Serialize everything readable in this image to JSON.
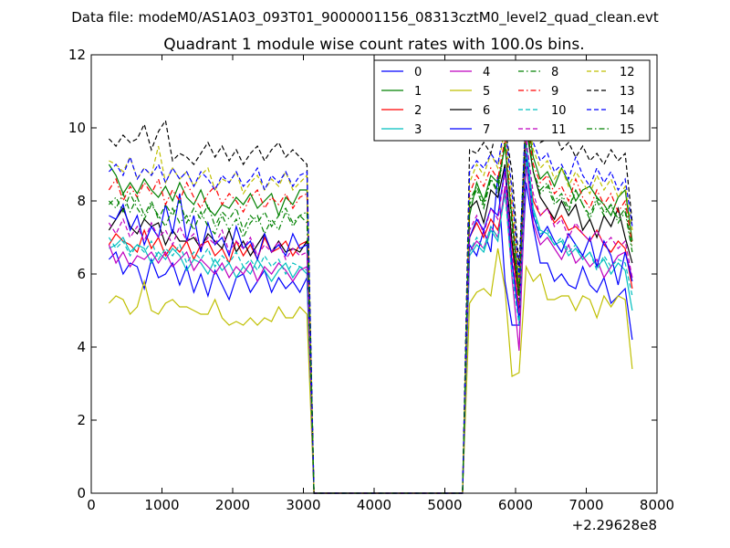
{
  "figure": {
    "suptitle": "Data file: modeM0/AS1A03_093T01_9000001156_08313cztM0_level2_quad_clean.evt",
    "offset_label": "+2.29628e8"
  },
  "chart_data": {
    "type": "line",
    "title": "Quadrant 1 module wise count rates with 100.0s bins.",
    "xlabel": "",
    "ylabel": "",
    "xlim": [
      0,
      8000
    ],
    "ylim": [
      0,
      12
    ],
    "x_offset": 229628000,
    "x_ticks": [
      0,
      1000,
      2000,
      3000,
      4000,
      5000,
      6000,
      7000,
      8000
    ],
    "y_ticks": [
      0,
      2,
      4,
      6,
      8,
      10,
      12
    ],
    "legend_position": "top-right",
    "legend_columns": 4,
    "x": [
      250,
      350,
      450,
      550,
      650,
      750,
      850,
      950,
      1050,
      1150,
      1250,
      1350,
      1450,
      1550,
      1650,
      1750,
      1850,
      1950,
      2050,
      2150,
      2250,
      2350,
      2450,
      2550,
      2650,
      2750,
      2850,
      2950,
      3050,
      3150,
      3250,
      3350,
      3450,
      3550,
      3650,
      3750,
      3850,
      3950,
      4050,
      4150,
      4250,
      4350,
      4450,
      4550,
      4650,
      4750,
      4850,
      4950,
      5050,
      5150,
      5250,
      5350,
      5450,
      5550,
      5650,
      5750,
      5850,
      5950,
      6050,
      6150,
      6250,
      6350,
      6450,
      6550,
      6650,
      6750,
      6850,
      6950,
      7050,
      7150,
      7250,
      7350,
      7450,
      7550,
      7650
    ],
    "series": [
      {
        "name": "0",
        "color": "#0000ff",
        "dash": "solid",
        "pre": [
          6.4,
          6.6,
          6.0,
          6.3,
          6.2,
          5.6,
          6.4,
          5.9,
          6.0,
          6.3,
          5.7,
          6.2,
          5.5,
          6.0,
          5.4,
          6.1,
          5.7,
          5.3,
          5.9,
          6.0,
          5.5,
          5.8,
          6.1,
          5.5,
          5.9,
          5.6,
          5.8,
          5.5,
          5.9
        ],
        "post": [
          6.8,
          6.5,
          7.2,
          6.6,
          8.7,
          5.8,
          4.6,
          4.6,
          8.5,
          7.3,
          6.3,
          6.3,
          5.8,
          6.0,
          5.7,
          5.6,
          6.2,
          5.7,
          5.5,
          5.9,
          5.2,
          5.4,
          5.6,
          4.2
        ]
      },
      {
        "name": "1",
        "color": "#008000",
        "dash": "solid",
        "pre": [
          9.0,
          8.7,
          8.2,
          8.5,
          8.2,
          8.6,
          8.3,
          8.1,
          8.4,
          8.0,
          8.5,
          8.1,
          7.9,
          8.3,
          7.8,
          7.6,
          7.9,
          7.8,
          8.1,
          7.9,
          8.2,
          7.8,
          8.0,
          8.2,
          7.6,
          8.1,
          7.9,
          8.3,
          8.3
        ],
        "post": [
          7.6,
          8.5,
          8.0,
          8.7,
          8.5,
          9.5,
          7.5,
          5.6,
          10.4,
          9.2,
          8.6,
          8.8,
          8.4,
          8.9,
          8.5,
          8.0,
          8.3,
          8.4,
          8.1,
          7.9,
          7.6,
          8.1,
          8.3,
          6.9
        ]
      },
      {
        "name": "2",
        "color": "#ff0000",
        "dash": "solid",
        "pre": [
          6.8,
          7.1,
          6.9,
          6.8,
          6.6,
          7.2,
          6.7,
          7.0,
          6.5,
          6.8,
          6.6,
          6.9,
          6.4,
          6.8,
          6.9,
          6.5,
          6.7,
          6.3,
          6.9,
          6.5,
          6.8,
          6.4,
          7.0,
          6.6,
          6.7,
          6.9,
          6.5,
          6.8,
          6.9
        ],
        "post": [
          7.0,
          7.4,
          7.0,
          7.5,
          7.2,
          8.2,
          6.8,
          5.0,
          9.2,
          8.0,
          7.6,
          7.8,
          7.4,
          7.6,
          7.2,
          7.3,
          7.1,
          6.9,
          7.2,
          6.8,
          6.6,
          6.9,
          6.7,
          5.6
        ]
      },
      {
        "name": "3",
        "color": "#00bfbf",
        "dash": "solid",
        "pre": [
          6.7,
          6.8,
          7.0,
          6.6,
          6.8,
          6.7,
          6.3,
          6.6,
          6.4,
          6.7,
          6.5,
          6.1,
          6.4,
          6.3,
          6.0,
          6.4,
          6.1,
          6.3,
          5.9,
          6.2,
          6.0,
          6.4,
          6.1,
          5.8,
          6.1,
          6.3,
          5.9,
          6.2,
          6.0
        ],
        "post": [
          6.5,
          6.8,
          6.6,
          7.2,
          6.9,
          8.3,
          6.3,
          4.7,
          9.6,
          7.8,
          7.2,
          7.1,
          6.8,
          6.9,
          6.5,
          6.7,
          6.4,
          6.6,
          6.2,
          6.4,
          6.0,
          6.3,
          6.1,
          5.0
        ]
      },
      {
        "name": "4",
        "color": "#bf00bf",
        "dash": "solid",
        "pre": [
          6.8,
          6.3,
          6.6,
          6.2,
          6.5,
          6.4,
          6.6,
          6.3,
          6.6,
          6.2,
          6.4,
          6.6,
          6.1,
          6.4,
          6.2,
          6.0,
          6.3,
          5.9,
          6.2,
          6.0,
          6.3,
          5.8,
          6.2,
          6.0,
          6.3,
          6.1,
          5.8,
          6.1,
          6.2
        ],
        "post": [
          6.6,
          6.9,
          6.7,
          7.3,
          7.0,
          8.4,
          5.9,
          3.9,
          9.0,
          7.4,
          6.8,
          7.0,
          6.7,
          6.4,
          6.8,
          6.3,
          6.5,
          6.2,
          6.4,
          5.9,
          6.2,
          6.5,
          6.6,
          5.9
        ]
      },
      {
        "name": "5",
        "color": "#bfbf00",
        "dash": "solid",
        "pre": [
          5.2,
          5.4,
          5.3,
          4.9,
          5.1,
          5.8,
          5.0,
          4.9,
          5.2,
          5.3,
          5.1,
          5.1,
          5.0,
          4.9,
          4.9,
          5.3,
          4.8,
          4.6,
          4.7,
          4.6,
          4.8,
          4.6,
          4.8,
          4.7,
          5.1,
          4.8,
          4.8,
          5.1,
          4.9
        ],
        "post": [
          5.2,
          5.5,
          5.6,
          5.4,
          6.7,
          5.6,
          3.2,
          3.3,
          6.2,
          5.8,
          6.0,
          5.3,
          5.3,
          5.4,
          5.4,
          5.0,
          5.4,
          5.3,
          4.8,
          5.4,
          5.1,
          5.4,
          5.3,
          3.4
        ]
      },
      {
        "name": "6",
        "color": "#000000",
        "dash": "solid",
        "pre": [
          7.2,
          7.5,
          7.8,
          7.3,
          7.1,
          7.5,
          7.3,
          7.4,
          6.8,
          7.2,
          6.9,
          6.9,
          7.0,
          6.7,
          7.1,
          6.9,
          6.7,
          7.2,
          6.6,
          6.9,
          6.5,
          6.8,
          7.1,
          6.6,
          6.9,
          6.6,
          6.7,
          6.6,
          6.9
        ],
        "post": [
          7.8,
          8.0,
          7.4,
          8.3,
          8.1,
          9.0,
          6.9,
          5.4,
          10.0,
          8.8,
          8.1,
          7.8,
          7.5,
          8.0,
          7.6,
          7.9,
          7.2,
          7.5,
          7.0,
          7.6,
          7.3,
          7.8,
          7.0,
          6.3
        ]
      },
      {
        "name": "7",
        "color": "#0000ff",
        "dash": "solid",
        "pre": [
          7.6,
          7.5,
          7.9,
          7.2,
          7.6,
          6.8,
          7.3,
          7.0,
          7.9,
          7.1,
          8.2,
          6.9,
          7.6,
          6.6,
          7.4,
          6.8,
          7.0,
          6.5,
          7.3,
          6.7,
          6.9,
          6.4,
          7.1,
          6.6,
          6.8,
          6.5,
          7.1,
          6.7,
          6.8
        ],
        "post": [
          7.0,
          7.5,
          7.2,
          7.8,
          7.6,
          8.9,
          6.3,
          4.8,
          9.3,
          7.6,
          7.0,
          7.3,
          6.9,
          6.6,
          7.1,
          6.8,
          6.5,
          7.0,
          6.2,
          6.9,
          6.5,
          5.7,
          6.6,
          5.8
        ]
      },
      {
        "name": "8",
        "color": "#008000",
        "dash": "dashdot",
        "pre": [
          7.9,
          8.1,
          7.7,
          8.2,
          7.8,
          7.5,
          7.9,
          7.6,
          7.3,
          7.8,
          7.4,
          7.6,
          7.2,
          7.7,
          7.3,
          7.1,
          7.6,
          7.2,
          7.5,
          7.0,
          7.4,
          7.6,
          7.1,
          7.5,
          7.2,
          7.7,
          7.3,
          7.6,
          7.4
        ],
        "post": [
          7.9,
          8.3,
          7.8,
          8.6,
          8.2,
          9.6,
          7.3,
          5.2,
          10.1,
          8.8,
          8.2,
          8.4,
          7.9,
          8.1,
          7.7,
          8.3,
          7.9,
          7.5,
          8.0,
          7.6,
          7.9,
          7.4,
          7.7,
          6.6
        ]
      },
      {
        "name": "9",
        "color": "#ff0000",
        "dash": "dashdot",
        "pre": [
          8.3,
          8.6,
          8.0,
          8.4,
          8.1,
          8.5,
          8.2,
          8.6,
          7.9,
          8.3,
          8.0,
          8.5,
          8.1,
          7.8,
          8.2,
          8.4,
          7.9,
          8.2,
          8.0,
          7.7,
          8.1,
          8.3,
          7.8,
          8.1,
          7.9,
          8.2,
          7.8,
          8.1,
          8.2
        ],
        "post": [
          8.2,
          8.7,
          8.4,
          8.9,
          8.6,
          9.7,
          7.7,
          5.6,
          10.3,
          9.0,
          8.5,
          8.7,
          8.2,
          8.4,
          8.0,
          8.6,
          8.1,
          7.8,
          8.3,
          7.9,
          8.2,
          7.7,
          8.0,
          6.8
        ]
      },
      {
        "name": "10",
        "color": "#00bfbf",
        "dash": "dashed",
        "pre": [
          7.0,
          6.7,
          6.9,
          6.5,
          6.8,
          6.6,
          6.9,
          6.4,
          6.7,
          6.5,
          6.8,
          6.3,
          6.6,
          6.4,
          6.7,
          6.2,
          6.5,
          6.3,
          6.6,
          6.2,
          6.4,
          6.1,
          6.5,
          6.2,
          6.4,
          6.0,
          6.3,
          6.2,
          6.1
        ],
        "post": [
          6.6,
          7.0,
          6.7,
          7.3,
          7.0,
          8.2,
          6.0,
          4.6,
          9.2,
          7.7,
          7.1,
          7.2,
          6.8,
          7.0,
          6.6,
          6.8,
          6.4,
          6.6,
          6.1,
          6.5,
          6.2,
          6.4,
          6.3,
          5.4
        ]
      },
      {
        "name": "11",
        "color": "#bf00bf",
        "dash": "dashed",
        "pre": [
          7.4,
          7.1,
          7.5,
          7.0,
          7.3,
          6.9,
          7.4,
          7.0,
          7.2,
          6.8,
          7.3,
          6.9,
          7.1,
          6.7,
          7.0,
          6.8,
          7.2,
          6.6,
          6.9,
          6.7,
          7.0,
          6.5,
          6.8,
          6.6,
          6.9,
          6.4,
          6.7,
          6.5,
          6.6
        ],
        "post": [
          7.2,
          7.6,
          7.1,
          7.8,
          7.5,
          8.8,
          6.6,
          4.9,
          9.7,
          8.2,
          7.6,
          7.8,
          7.3,
          7.5,
          7.0,
          7.4,
          7.1,
          6.9,
          7.2,
          6.8,
          7.0,
          6.7,
          6.9,
          5.9
        ]
      },
      {
        "name": "12",
        "color": "#bfbf00",
        "dash": "dashed",
        "pre": [
          9.1,
          9.0,
          8.8,
          9.2,
          8.6,
          8.9,
          8.7,
          9.5,
          8.5,
          8.9,
          8.6,
          8.8,
          8.4,
          8.7,
          8.9,
          8.3,
          8.6,
          8.5,
          8.8,
          8.2,
          8.5,
          8.7,
          8.3,
          8.6,
          8.4,
          8.8,
          8.3,
          8.5,
          8.7
        ],
        "post": [
          8.5,
          9.0,
          8.7,
          9.3,
          8.9,
          10.0,
          8.1,
          5.8,
          10.6,
          9.4,
          8.9,
          9.1,
          8.6,
          8.9,
          8.4,
          8.8,
          8.5,
          8.2,
          8.7,
          8.3,
          8.6,
          8.1,
          8.4,
          7.2
        ]
      },
      {
        "name": "13",
        "color": "#000000",
        "dash": "dashed",
        "pre": [
          9.7,
          9.5,
          9.8,
          9.6,
          9.7,
          10.1,
          9.4,
          9.9,
          10.2,
          9.1,
          9.3,
          9.2,
          9.0,
          9.3,
          9.6,
          9.2,
          9.5,
          9.1,
          9.4,
          9.0,
          9.3,
          9.5,
          9.1,
          9.4,
          9.6,
          9.2,
          9.4,
          9.2,
          9.0
        ],
        "post": [
          9.4,
          9.3,
          9.6,
          9.3,
          10.1,
          10.0,
          8.8,
          6.2,
          10.5,
          10.0,
          9.6,
          9.7,
          9.9,
          9.4,
          9.6,
          9.2,
          9.5,
          9.1,
          9.3,
          9.0,
          9.4,
          9.1,
          9.3,
          7.4
        ]
      },
      {
        "name": "14",
        "color": "#0000ff",
        "dash": "dashed",
        "pre": [
          8.8,
          9.0,
          8.7,
          9.2,
          8.6,
          8.9,
          8.7,
          9.0,
          8.5,
          8.9,
          8.6,
          8.8,
          8.4,
          8.8,
          8.6,
          8.3,
          8.7,
          8.5,
          8.8,
          8.4,
          8.6,
          8.9,
          8.3,
          8.7,
          8.5,
          8.8,
          8.4,
          8.7,
          8.8
        ],
        "post": [
          8.8,
          9.1,
          8.9,
          9.3,
          9.0,
          10.1,
          8.3,
          5.9,
          10.8,
          9.6,
          9.1,
          9.3,
          8.8,
          9.0,
          8.6,
          9.2,
          8.7,
          8.4,
          8.9,
          8.5,
          8.8,
          8.3,
          8.6,
          7.3
        ]
      },
      {
        "name": "15",
        "color": "#008000",
        "dash": "dashdot",
        "pre": [
          8.0,
          7.8,
          8.2,
          7.7,
          8.1,
          7.6,
          8.0,
          7.5,
          7.9,
          7.6,
          8.0,
          7.4,
          7.8,
          7.5,
          7.9,
          7.3,
          7.7,
          7.5,
          7.8,
          7.2,
          7.6,
          7.4,
          7.7,
          7.3,
          7.6,
          7.8,
          7.4,
          7.6,
          7.7
        ],
        "post": [
          8.0,
          8.4,
          7.9,
          8.6,
          8.3,
          9.6,
          7.5,
          5.4,
          10.2,
          8.8,
          8.3,
          8.5,
          8.0,
          8.2,
          7.8,
          8.3,
          7.9,
          7.6,
          8.1,
          7.7,
          7.9,
          7.5,
          7.8,
          6.7
        ]
      }
    ]
  }
}
